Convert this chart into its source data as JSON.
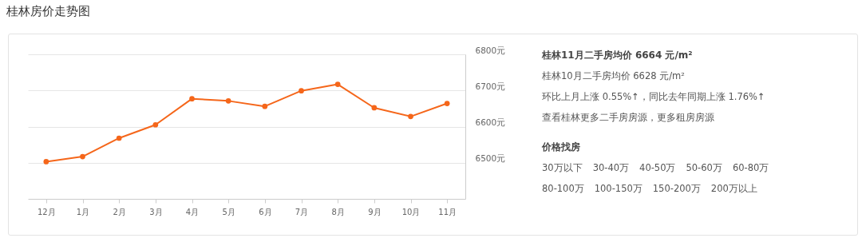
{
  "chart_data": [
    {
      "type": "line",
      "title": "桂林房价走势图",
      "categories": [
        "12月",
        "1月",
        "2月",
        "3月",
        "4月",
        "5月",
        "6月",
        "7月",
        "8月",
        "9月",
        "10月",
        "11月"
      ],
      "series": [
        {
          "color": "#f5661a",
          "values": [
            6503,
            6517,
            6568,
            6605,
            6677,
            6671,
            6656,
            6699,
            6717,
            6652,
            6628,
            6664
          ]
        }
      ],
      "ylim": [
        6400,
        6800
      ],
      "yticks": [
        {
          "value": 6500,
          "label": "6500元"
        },
        {
          "value": 6600,
          "label": "6600元"
        },
        {
          "value": 6700,
          "label": "6700元"
        },
        {
          "value": 6800,
          "label": "6800元"
        }
      ],
      "grid": "y",
      "marker": "circle",
      "line_style": "solid",
      "legend": false
    },
    {
      "type": "other",
      "title": "桂林11月二手房均价 6664 元/m²",
      "annotations": [
        "桂林10月二手房均价 6628 元/m²",
        "环比上月上涨 0.55%↑，同比去年同期上涨 1.76%↑",
        "查看桂林更多二手房房源，更多租房房源"
      ]
    },
    {
      "type": "other",
      "title": "价格找房",
      "annotations": [
        "30万以下",
        "30-40万",
        "40-50万",
        "50-60万",
        "60-80万",
        "80-100万",
        "100-150万",
        "150-200万",
        "200万以上"
      ]
    }
  ]
}
